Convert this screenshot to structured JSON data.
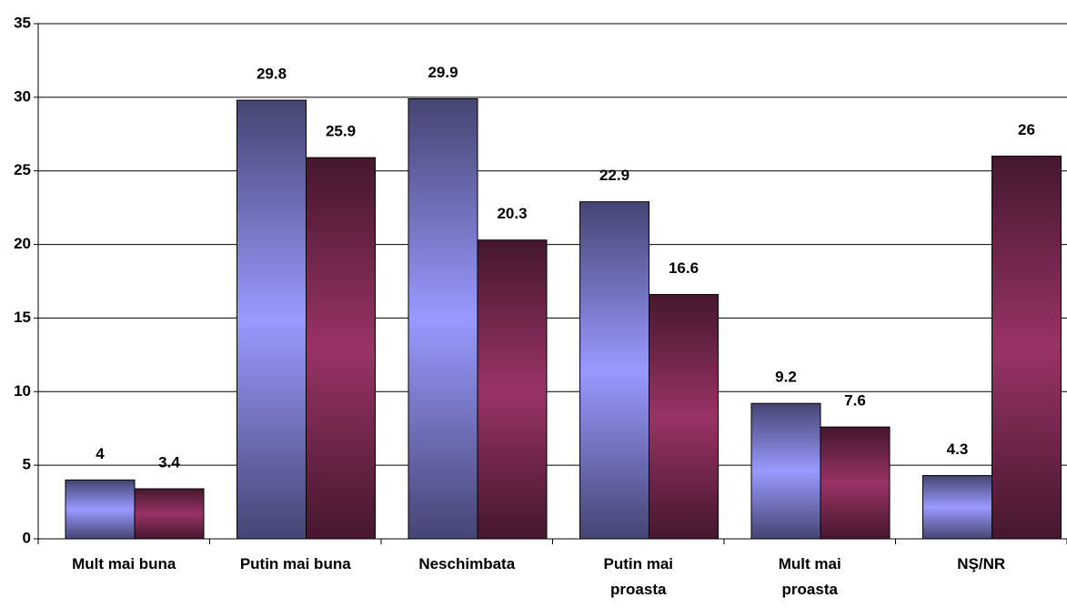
{
  "chart_data": {
    "type": "bar",
    "categories": [
      "Mult mai buna",
      "Putin mai buna",
      "Neschimbata",
      "Putin mai\nproasta",
      "Mult mai\nproasta",
      "NŞ/NR"
    ],
    "series": [
      {
        "color": "#9999ff",
        "values": [
          4,
          29.8,
          29.9,
          22.9,
          9.2,
          4.3
        ]
      },
      {
        "color": "#993366",
        "values": [
          3.4,
          25.9,
          20.3,
          16.6,
          7.6,
          26
        ]
      }
    ],
    "ylim": [
      0,
      35
    ],
    "yticks": [
      0,
      5,
      10,
      15,
      20,
      25,
      30,
      35
    ],
    "grid": true
  }
}
